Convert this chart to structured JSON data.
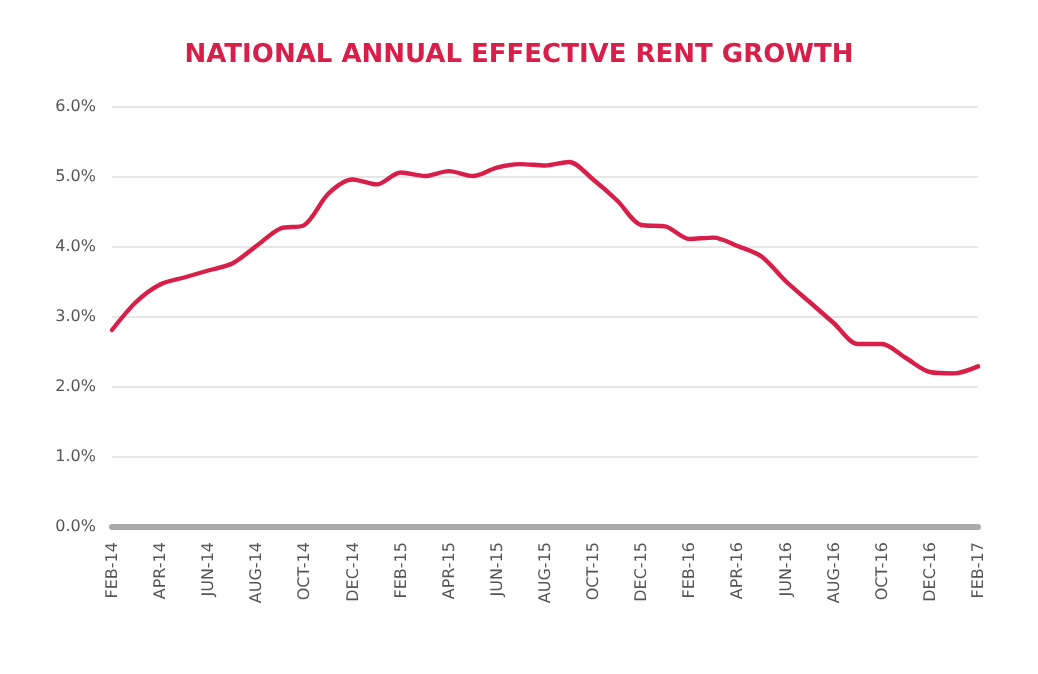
{
  "chart_data": {
    "type": "line",
    "title": "NATIONAL ANNUAL EFFECTIVE RENT GROWTH",
    "categories": [
      "FEB-14",
      null,
      "APR-14",
      null,
      "JUN-14",
      null,
      "AUG-14",
      null,
      "OCT-14",
      null,
      "DEC-14",
      null,
      "FEB-15",
      null,
      "APR-15",
      null,
      "JUN-15",
      null,
      "AUG-15",
      null,
      "OCT-15",
      null,
      "DEC-15",
      null,
      "FEB-16",
      null,
      "APR-16",
      null,
      "JUN-16",
      null,
      "AUG-16",
      null,
      "OCT-16",
      null,
      "DEC-16",
      null,
      "FEB-17"
    ],
    "series": [
      {
        "color": "#d81f4a",
        "values": [
          2.8,
          3.2,
          3.45,
          3.55,
          3.65,
          3.75,
          4.0,
          4.25,
          4.3,
          4.75,
          4.95,
          4.88,
          5.05,
          5.0,
          5.07,
          5.0,
          5.12,
          5.17,
          5.15,
          5.2,
          4.95,
          4.65,
          4.3,
          4.28,
          4.1,
          4.12,
          4.0,
          3.85,
          3.5,
          3.2,
          2.9,
          2.6,
          2.6,
          2.4,
          2.2,
          2.18,
          2.28
        ]
      }
    ],
    "ylim": [
      0,
      6
    ],
    "yticks": [
      {
        "value": 0,
        "label": "0.0%"
      },
      {
        "value": 1,
        "label": "1.0%"
      },
      {
        "value": 2,
        "label": "2.0%"
      },
      {
        "value": 3,
        "label": "3.0%"
      },
      {
        "value": 4,
        "label": "4.0%"
      },
      {
        "value": 5,
        "label": "5.0%"
      },
      {
        "value": 6,
        "label": "6.0%"
      }
    ],
    "grid": "y",
    "marker": "none",
    "line_style": "solid"
  }
}
